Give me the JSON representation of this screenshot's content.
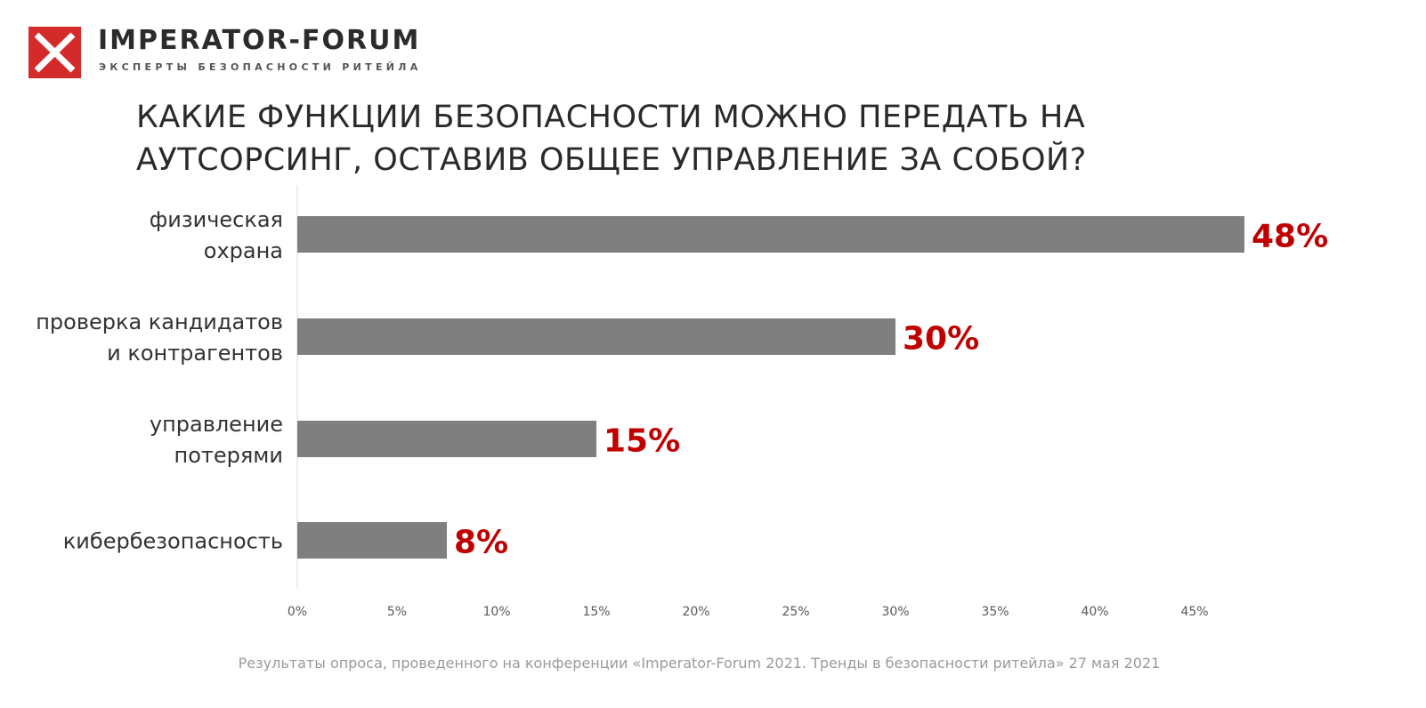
{
  "header": {
    "brand": "IMPERATOR-FORUM",
    "tagline": "ЭКСПЕРТЫ БЕЗОПАСНОСТИ РИТЕЙЛА",
    "logo_icon": "red-square-x-logo"
  },
  "title_lines": [
    "КАКИЕ ФУНКЦИИ БЕЗОПАСНОСТИ МОЖНО ПЕРЕДАТЬ НА",
    "АУТСОРСИНГ, ОСТАВИВ ОБЩЕЕ УПРАВЛЕНИЕ ЗА СОБОЙ?"
  ],
  "footer": "Результаты опроса, проведенного на конференции «Imperator-Forum 2021. Тренды в безопасности ритейла» 27 мая 2021",
  "colors": {
    "bar": "#7f7f7f",
    "value_label": "#c00000",
    "brand_red": "#d42a2a",
    "text": "#333333",
    "tick": "#595959"
  },
  "chart_data": {
    "type": "bar",
    "orientation": "horizontal",
    "categories": [
      [
        "физическая",
        "охрана"
      ],
      [
        "проверка кандидатов",
        "и контрагентов"
      ],
      [
        "управление",
        "потерями"
      ],
      [
        "кибербезопасность"
      ]
    ],
    "values": [
      47.5,
      30,
      15,
      7.5
    ],
    "value_labels": [
      "48%",
      "30%",
      "15%",
      "8%"
    ],
    "x_ticks": [
      "0%",
      "5%",
      "10%",
      "15%",
      "20%",
      "25%",
      "30%",
      "35%",
      "40%",
      "45%"
    ],
    "xlim": [
      0,
      50
    ],
    "grid": false,
    "legend": "none"
  }
}
